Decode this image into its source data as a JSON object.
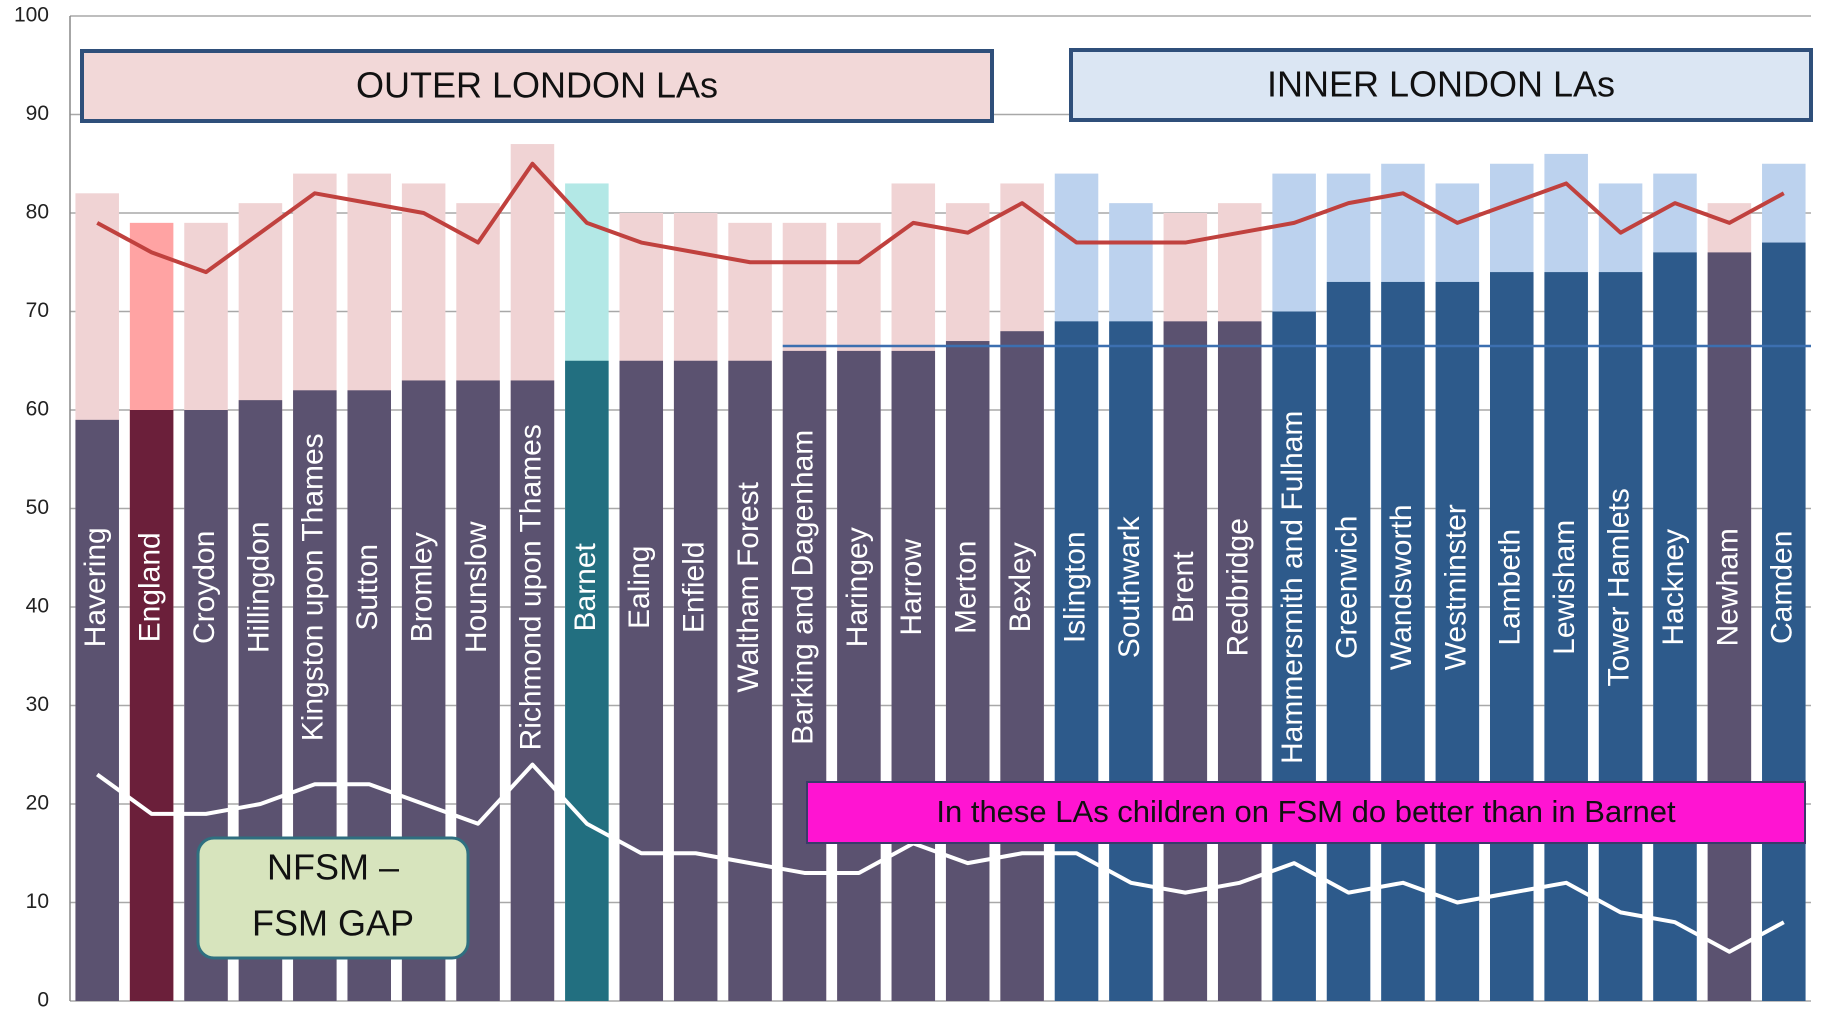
{
  "chart_data": {
    "type": "bar",
    "categories": [
      "Havering",
      "England",
      "Croydon",
      "Hillingdon",
      "Kingston upon Thames",
      "Sutton",
      "Bromley",
      "Hounslow",
      "Richmond upon Thames",
      "Barnet",
      "Ealing",
      "Enfield",
      "Waltham Forest",
      "Barking and Dagenham",
      "Haringey",
      "Harrow",
      "Merton",
      "Bexley",
      "Islington",
      "Southwark",
      "Brent",
      "Redbridge",
      "Hammersmith and Fulham",
      "Greenwich",
      "Wandsworth",
      "Westminster",
      "Lambeth",
      "Lewisham",
      "Tower Hamlets",
      "Hackney",
      "Newham",
      "Camden"
    ],
    "series": [
      {
        "values": [
          82,
          79,
          79,
          81,
          84,
          84,
          83,
          81,
          87,
          83,
          80,
          80,
          79,
          79,
          79,
          83,
          81,
          83,
          84,
          81,
          80,
          81,
          84,
          84,
          85,
          83,
          85,
          86,
          83,
          84,
          81,
          85
        ],
        "colors": [
          "#f0d3d4",
          "#ffa3a3",
          "#f0d3d4",
          "#f0d3d4",
          "#f0d3d4",
          "#f0d3d4",
          "#f0d3d4",
          "#f0d3d4",
          "#f0d3d4",
          "#b3e8e6",
          "#f0d3d4",
          "#f0d3d4",
          "#f0d3d4",
          "#f0d3d4",
          "#f0d3d4",
          "#f0d3d4",
          "#f0d3d4",
          "#f0d3d4",
          "#bcd2ee",
          "#bcd2ee",
          "#f0d3d4",
          "#f0d3d4",
          "#bcd2ee",
          "#bcd2ee",
          "#bcd2ee",
          "#bcd2ee",
          "#bcd2ee",
          "#bcd2ee",
          "#bcd2ee",
          "#bcd2ee",
          "#f0d3d4",
          "#bcd2ee"
        ]
      },
      {
        "values": [
          59,
          60,
          60,
          61,
          62,
          62,
          63,
          63,
          63,
          65,
          65,
          65,
          65,
          66,
          66,
          66,
          67,
          68,
          69,
          69,
          69,
          69,
          70,
          73,
          73,
          73,
          74,
          74,
          74,
          76,
          76,
          77
        ],
        "colors": [
          "#5b5270",
          "#6b1f3a",
          "#5b5270",
          "#5b5270",
          "#5b5270",
          "#5b5270",
          "#5b5270",
          "#5b5270",
          "#5b5270",
          "#226f80",
          "#5b5270",
          "#5b5270",
          "#5b5270",
          "#5b5270",
          "#5b5270",
          "#5b5270",
          "#5b5270",
          "#5b5270",
          "#2d5a8b",
          "#2d5a8b",
          "#5b5270",
          "#5b5270",
          "#2d5a8b",
          "#2d5a8b",
          "#2d5a8b",
          "#2d5a8b",
          "#2d5a8b",
          "#2d5a8b",
          "#2d5a8b",
          "#2d5a8b",
          "#5b5270",
          "#2d5a8b"
        ]
      },
      {
        "type": "line",
        "color": "#c0413e",
        "values": [
          79,
          76,
          74,
          78,
          82,
          81,
          80,
          77,
          85,
          79,
          77,
          76,
          75,
          75,
          75,
          79,
          78,
          81,
          77,
          77,
          77,
          78,
          79,
          81,
          82,
          79,
          81,
          83,
          78,
          81,
          79,
          82
        ]
      },
      {
        "type": "line",
        "color": "#ffffff",
        "values": [
          23,
          19,
          19,
          20,
          22,
          22,
          20,
          18,
          24,
          18,
          15,
          15,
          14,
          13,
          13,
          16,
          14,
          15,
          15,
          12,
          11,
          12,
          14,
          11,
          12,
          10,
          11,
          12,
          9,
          8,
          5,
          8
        ]
      }
    ],
    "reference_line": {
      "value": 66.5,
      "from": "Barking and Dagenham",
      "color": "#3c6fb0"
    },
    "annotations": [
      "OUTER LONDON LAs",
      "INNER LONDON LAs",
      [
        "NFSM –",
        "FSM GAP"
      ],
      "In these LAs children on FSM do better than in Barnet"
    ],
    "ylim": [
      0,
      100
    ],
    "yticks": [
      0,
      10,
      20,
      30,
      40,
      50,
      60,
      70,
      80,
      90,
      100
    ],
    "grid": true
  }
}
